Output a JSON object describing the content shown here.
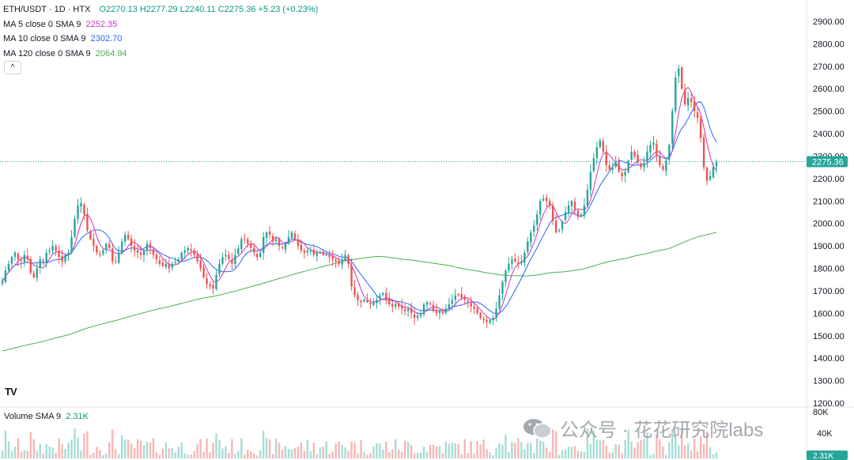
{
  "legend": {
    "symbol": "ETH/USDT · 1D · HTX",
    "ohlc": "O2270.13 H2277.29 L2240.11 C2275.36 +5.23 (+0.23%)",
    "ma5_label": "MA 5 close 0 SMA 9",
    "ma5_value": "2252.35",
    "ma10_label": "MA 10 close 0 SMA 9",
    "ma10_value": "2302.70",
    "ma120_label": "MA 120 close 0 SMA 9",
    "ma120_value": "2064.94",
    "collapse_icon": "^"
  },
  "volume_legend": {
    "label": "Volume SMA 9",
    "value": "2.31K"
  },
  "tv_logo_text": "TV",
  "watermark": {
    "text": "公众号 · 花花研究院labs",
    "icon": "wechat-icon"
  },
  "colors": {
    "up": "#26a69a",
    "down": "#ef5350",
    "ma5": "#d32fbd",
    "ma10": "#2962ff",
    "ma120": "#4caf50",
    "price_label_bg": "#26a69a"
  },
  "chart_data": {
    "type": "candlestick",
    "title": "ETH/USDT · 1D · HTX",
    "price_axis": {
      "ticks": [
        2900,
        2800,
        2700,
        2600,
        2500,
        2400,
        2300,
        2200,
        2100,
        2000,
        1900,
        1800,
        1700,
        1600,
        1500,
        1400,
        1300,
        1200
      ],
      "tick_labels": [
        "2900.00",
        "2800.00",
        "2700.00",
        "2600.00",
        "2500.00",
        "2400.00",
        "2300.00",
        "2200.00",
        "2100.00",
        "2000.00",
        "1900.00",
        "1800.00",
        "1700.00",
        "1600.00",
        "1500.00",
        "1400.00",
        "1300.00",
        "1200.00"
      ],
      "range": [
        1200,
        2950
      ]
    },
    "current_price": 2275.36,
    "current_price_label": "2275.36",
    "closes": [
      1740,
      1790,
      1820,
      1850,
      1870,
      1840,
      1830,
      1860,
      1840,
      1780,
      1760,
      1800,
      1840,
      1830,
      1870,
      1880,
      1900,
      1880,
      1850,
      1830,
      1860,
      1870,
      1940,
      2020,
      2080,
      2090,
      2040,
      1970,
      1930,
      1900,
      1870,
      1860,
      1880,
      1910,
      1890,
      1830,
      1830,
      1870,
      1920,
      1950,
      1930,
      1900,
      1880,
      1870,
      1860,
      1880,
      1910,
      1890,
      1860,
      1840,
      1820,
      1810,
      1820,
      1800,
      1820,
      1830,
      1840,
      1870,
      1880,
      1890,
      1880,
      1860,
      1830,
      1800,
      1760,
      1730,
      1720,
      1710,
      1770,
      1820,
      1850,
      1860,
      1840,
      1820,
      1860,
      1890,
      1930,
      1930,
      1910,
      1890,
      1870,
      1850,
      1870,
      1940,
      1960,
      1950,
      1920,
      1930,
      1900,
      1890,
      1910,
      1940,
      1960,
      1930,
      1900,
      1880,
      1870,
      1880,
      1880,
      1860,
      1870,
      1870,
      1860,
      1860,
      1850,
      1840,
      1830,
      1820,
      1840,
      1860,
      1820,
      1720,
      1680,
      1660,
      1650,
      1660,
      1650,
      1640,
      1650,
      1660,
      1680,
      1690,
      1660,
      1640,
      1630,
      1640,
      1630,
      1620,
      1610,
      1620,
      1600,
      1580,
      1590,
      1600,
      1640,
      1650,
      1640,
      1610,
      1600,
      1610,
      1600,
      1620,
      1640,
      1660,
      1680,
      1680,
      1670,
      1660,
      1650,
      1630,
      1620,
      1600,
      1580,
      1570,
      1560,
      1570,
      1580,
      1620,
      1680,
      1740,
      1790,
      1820,
      1840,
      1830,
      1820,
      1830,
      1870,
      1920,
      1960,
      1990,
      2040,
      2100,
      2110,
      2100,
      2080,
      2010,
      1960,
      1970,
      2010,
      2050,
      2080,
      2100,
      2060,
      2030,
      2040,
      2080,
      2150,
      2230,
      2290,
      2340,
      2370,
      2320,
      2260,
      2240,
      2250,
      2270,
      2230,
      2210,
      2230,
      2280,
      2320,
      2300,
      2270,
      2250,
      2270,
      2320,
      2350,
      2360,
      2300,
      2260,
      2240,
      2280,
      2350,
      2500,
      2650,
      2690,
      2600,
      2530,
      2560,
      2540,
      2500,
      2470,
      2380,
      2250,
      2190,
      2210,
      2250,
      2275
    ]
  }
}
